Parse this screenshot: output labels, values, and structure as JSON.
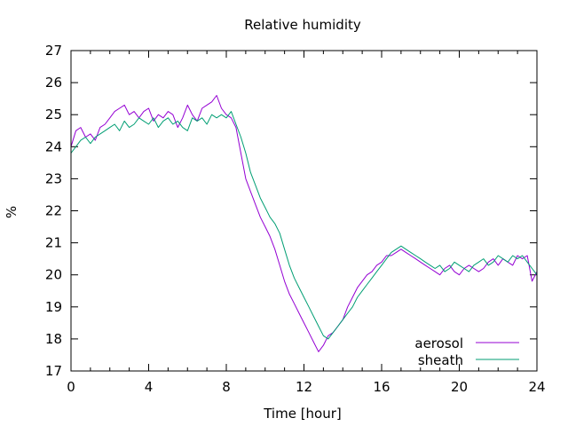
{
  "chart_data": {
    "type": "line",
    "title": "Relative humidity",
    "xlabel": "Time [hour]",
    "ylabel": "%",
    "xlim": [
      0,
      24
    ],
    "ylim": [
      17,
      27
    ],
    "xticks": [
      0,
      4,
      8,
      12,
      16,
      20,
      24
    ],
    "yticks": [
      17,
      18,
      19,
      20,
      21,
      22,
      23,
      24,
      25,
      26,
      27
    ],
    "grid": false,
    "legend_position": "bottom-right",
    "series": [
      {
        "name": "aerosol",
        "color": "#9400d3",
        "x": [
          0,
          0.25,
          0.5,
          0.75,
          1,
          1.25,
          1.5,
          1.75,
          2,
          2.25,
          2.5,
          2.75,
          3,
          3.25,
          3.5,
          3.75,
          4,
          4.25,
          4.5,
          4.75,
          5,
          5.25,
          5.5,
          5.75,
          6,
          6.25,
          6.5,
          6.75,
          7,
          7.25,
          7.5,
          7.75,
          8,
          8.25,
          8.5,
          8.75,
          9,
          9.25,
          9.5,
          9.75,
          10,
          10.25,
          10.5,
          10.75,
          11,
          11.25,
          11.5,
          11.75,
          12,
          12.25,
          12.5,
          12.75,
          13,
          13.25,
          13.5,
          13.75,
          14,
          14.25,
          14.5,
          14.75,
          15,
          15.25,
          15.5,
          15.75,
          16,
          16.25,
          16.5,
          16.75,
          17,
          17.25,
          17.5,
          17.75,
          18,
          18.25,
          18.5,
          18.75,
          19,
          19.25,
          19.5,
          19.75,
          20,
          20.25,
          20.5,
          20.75,
          21,
          21.25,
          21.5,
          21.75,
          22,
          22.25,
          22.5,
          22.75,
          23,
          23.25,
          23.5,
          23.75,
          24
        ],
        "y": [
          24.0,
          24.5,
          24.6,
          24.3,
          24.4,
          24.2,
          24.6,
          24.7,
          24.9,
          25.1,
          25.2,
          25.3,
          25.0,
          25.1,
          24.9,
          25.1,
          25.2,
          24.8,
          25.0,
          24.9,
          25.1,
          25.0,
          24.6,
          24.9,
          25.3,
          25.0,
          24.8,
          25.2,
          25.3,
          25.4,
          25.6,
          25.2,
          25.0,
          24.9,
          24.6,
          23.8,
          23.0,
          22.6,
          22.2,
          21.8,
          21.5,
          21.2,
          20.8,
          20.3,
          19.8,
          19.4,
          19.1,
          18.8,
          18.5,
          18.2,
          17.9,
          17.6,
          17.8,
          18.1,
          18.2,
          18.4,
          18.6,
          19.0,
          19.3,
          19.6,
          19.8,
          20.0,
          20.1,
          20.3,
          20.4,
          20.6,
          20.6,
          20.7,
          20.8,
          20.7,
          20.6,
          20.5,
          20.4,
          20.3,
          20.2,
          20.1,
          20.0,
          20.2,
          20.3,
          20.1,
          20.0,
          20.2,
          20.3,
          20.2,
          20.1,
          20.2,
          20.4,
          20.5,
          20.3,
          20.5,
          20.4,
          20.3,
          20.6,
          20.5,
          20.6,
          19.8,
          20.1
        ]
      },
      {
        "name": "sheath",
        "color": "#009e73",
        "x": [
          0,
          0.25,
          0.5,
          0.75,
          1,
          1.25,
          1.5,
          1.75,
          2,
          2.25,
          2.5,
          2.75,
          3,
          3.25,
          3.5,
          3.75,
          4,
          4.25,
          4.5,
          4.75,
          5,
          5.25,
          5.5,
          5.75,
          6,
          6.25,
          6.5,
          6.75,
          7,
          7.25,
          7.5,
          7.75,
          8,
          8.25,
          8.5,
          8.75,
          9,
          9.25,
          9.5,
          9.75,
          10,
          10.25,
          10.5,
          10.75,
          11,
          11.25,
          11.5,
          11.75,
          12,
          12.25,
          12.5,
          12.75,
          13,
          13.25,
          13.5,
          13.75,
          14,
          14.25,
          14.5,
          14.75,
          15,
          15.25,
          15.5,
          15.75,
          16,
          16.25,
          16.5,
          16.75,
          17,
          17.25,
          17.5,
          17.75,
          18,
          18.25,
          18.5,
          18.75,
          19,
          19.25,
          19.5,
          19.75,
          20,
          20.25,
          20.5,
          20.75,
          21,
          21.25,
          21.5,
          21.75,
          22,
          22.25,
          22.5,
          22.75,
          23,
          23.25,
          23.5,
          23.75,
          24
        ],
        "y": [
          23.8,
          24.0,
          24.2,
          24.3,
          24.1,
          24.3,
          24.4,
          24.5,
          24.6,
          24.7,
          24.5,
          24.8,
          24.6,
          24.7,
          24.9,
          24.8,
          24.7,
          24.9,
          24.6,
          24.8,
          24.9,
          24.7,
          24.8,
          24.6,
          24.5,
          24.9,
          24.8,
          24.9,
          24.7,
          25.0,
          24.9,
          25.0,
          24.9,
          25.1,
          24.7,
          24.3,
          23.8,
          23.2,
          22.8,
          22.4,
          22.1,
          21.8,
          21.6,
          21.3,
          20.8,
          20.3,
          19.9,
          19.6,
          19.3,
          19.0,
          18.7,
          18.4,
          18.1,
          18.0,
          18.2,
          18.4,
          18.6,
          18.8,
          19.0,
          19.3,
          19.5,
          19.7,
          19.9,
          20.1,
          20.3,
          20.5,
          20.7,
          20.8,
          20.9,
          20.8,
          20.7,
          20.6,
          20.5,
          20.4,
          20.3,
          20.2,
          20.3,
          20.1,
          20.2,
          20.4,
          20.3,
          20.2,
          20.1,
          20.3,
          20.4,
          20.5,
          20.3,
          20.4,
          20.6,
          20.5,
          20.4,
          20.6,
          20.5,
          20.6,
          20.4,
          20.2,
          20.0
        ]
      }
    ]
  }
}
